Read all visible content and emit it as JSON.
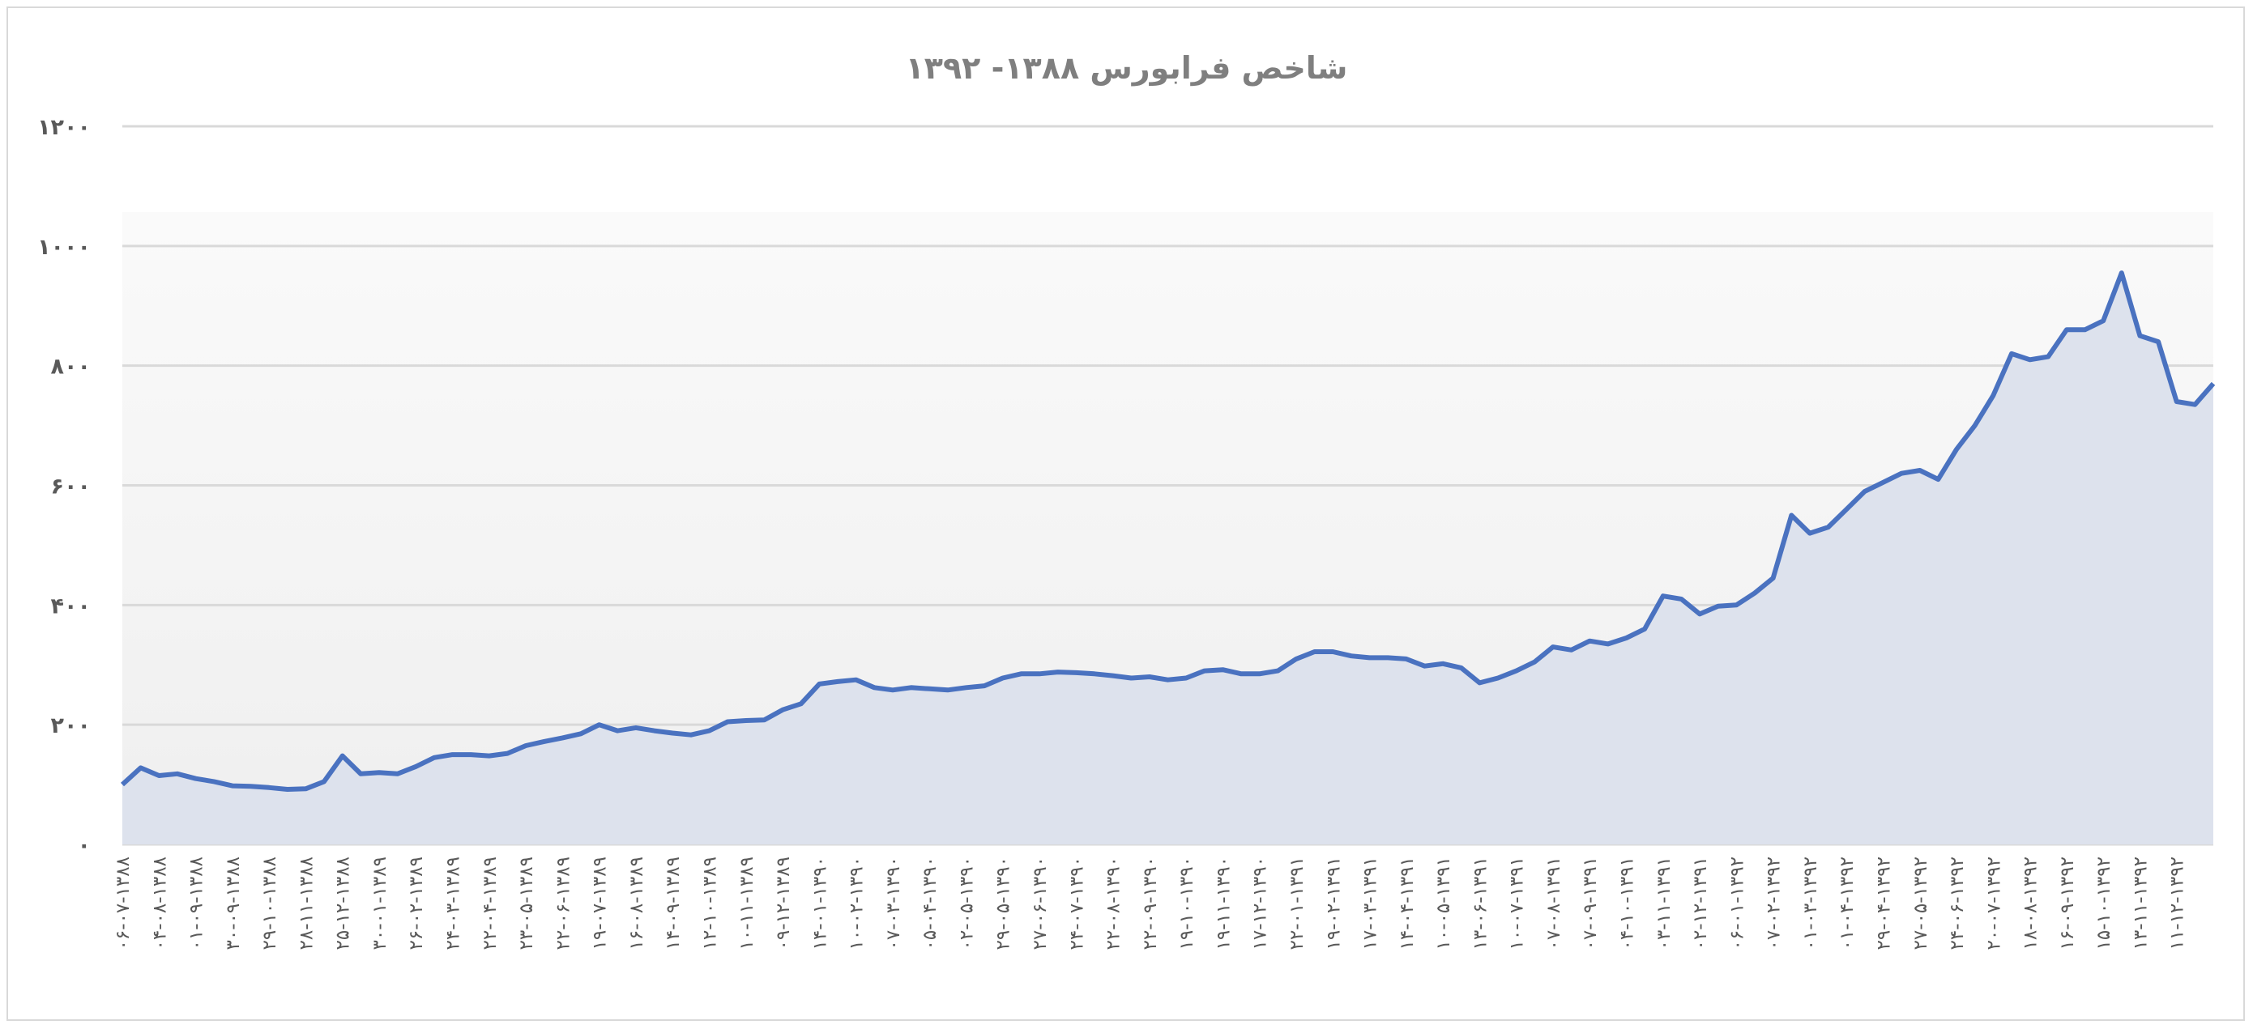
{
  "chart_data": {
    "type": "area",
    "title": "شاخص فرابورس ۱۳۸۸- ۱۳۹۲",
    "xlabel": "",
    "ylabel": "",
    "ylim": [
      0,
      1200
    ],
    "yticks": [
      0,
      200,
      400,
      600,
      800,
      1000,
      1200
    ],
    "ytick_labels": [
      "۰",
      "۲۰۰",
      "۴۰۰",
      "۶۰۰",
      "۸۰۰",
      "۱۰۰۰",
      "۱۲۰۰"
    ],
    "grid": true,
    "legend": "none",
    "colors": {
      "line": "#4a72c0",
      "fill": "#dde2ed",
      "grid": "#d9d9d9",
      "text": "#7f7f7f"
    },
    "xtick_labels": [
      "۰۶-۰۷-۱۳۸۸",
      "۰۴-۰۸-۱۳۸۸",
      "۰۱-۰۹-۱۳۸۸",
      "۳۰-۰۹-۱۳۸۸",
      "۲۹-۱۰-۱۳۸۸",
      "۲۸-۱۱-۱۳۸۸",
      "۲۵-۱۲-۱۳۸۸",
      "۳۰-۰۱-۱۳۸۹",
      "۲۶-۰۲-۱۳۸۹",
      "۲۴-۰۳-۱۳۸۹",
      "۲۲-۰۴-۱۳۸۹",
      "۲۳-۰۵-۱۳۸۹",
      "۲۲-۰۶-۱۳۸۹",
      "۱۹-۰۷-۱۳۸۹",
      "۱۶-۰۸-۱۳۸۹",
      "۱۴-۰۹-۱۳۸۹",
      "۱۲-۱۰-۱۳۸۹",
      "۱۰-۱۱-۱۳۸۹",
      "۰۹-۱۲-۱۳۸۹",
      "۱۴-۰۱-۱۳۹۰",
      "۱۰-۰۲-۱۳۹۰",
      "۰۷-۰۳-۱۳۹۰",
      "۰۵-۰۴-۱۳۹۰",
      "۰۲-۰۵-۱۳۹۰",
      "۲۹-۰۵-۱۳۹۰",
      "۲۷-۰۶-۱۳۹۰",
      "۲۴-۰۷-۱۳۹۰",
      "۲۲-۰۸-۱۳۹۰",
      "۲۲-۰۹-۱۳۹۰",
      "۱۹-۱۰-۱۳۹۰",
      "۱۹-۱۱-۱۳۹۰",
      "۱۷-۱۲-۱۳۹۰",
      "۲۲-۰۱-۱۳۹۱",
      "۱۹-۰۲-۱۳۹۱",
      "۱۷-۰۳-۱۳۹۱",
      "۱۴-۰۴-۱۳۹۱",
      "۱۰-۰۵-۱۳۹۱",
      "۱۳-۰۶-۱۳۹۱",
      "۱۰-۰۷-۱۳۹۱",
      "۰۷-۰۸-۱۳۹۱",
      "۰۷-۰۹-۱۳۹۱",
      "۰۴-۱۰-۱۳۹۱",
      "۰۳-۱۱-۱۳۹۱",
      "۰۲-۱۲-۱۳۹۱",
      "۰۶-۰۱-۱۳۹۲",
      "۰۷-۰۲-۱۳۹۲",
      "۰۱-۰۳-۱۳۹۲",
      "۰۱-۰۴-۱۳۹۲",
      "۲۹-۰۴-۱۳۹۲",
      "۲۷-۰۵-۱۳۹۲",
      "۲۴-۰۶-۱۳۹۲",
      "۲۰-۰۷-۱۳۹۲",
      "۱۸-۰۸-۱۳۹۲",
      "۱۶-۰۹-۱۳۹۲",
      "۱۵-۱۰-۱۳۹۲",
      "۱۳-۱۱-۱۳۹۲",
      "۱۱-۱۲-۱۳۹۲"
    ],
    "values": [
      100,
      128,
      115,
      118,
      110,
      105,
      98,
      97,
      95,
      92,
      93,
      105,
      148,
      118,
      120,
      118,
      130,
      145,
      150,
      150,
      148,
      152,
      165,
      172,
      178,
      185,
      200,
      190,
      195,
      190,
      186,
      183,
      190,
      205,
      207,
      208,
      225,
      235,
      268,
      272,
      275,
      262,
      258,
      262,
      260,
      258,
      262,
      265,
      278,
      285,
      285,
      288,
      287,
      285,
      282,
      278,
      280,
      275,
      278,
      290,
      292,
      285,
      285,
      290,
      310,
      322,
      322,
      315,
      312,
      312,
      310,
      298,
      302,
      295,
      270,
      278,
      290,
      305,
      330,
      325,
      340,
      335,
      345,
      360,
      415,
      410,
      385,
      398,
      400,
      420,
      445,
      550,
      520,
      530,
      560,
      590,
      605,
      620,
      625,
      610,
      660,
      700,
      750,
      820,
      810,
      815,
      860,
      860,
      875,
      955,
      850,
      840,
      740,
      735,
      770
    ]
  }
}
